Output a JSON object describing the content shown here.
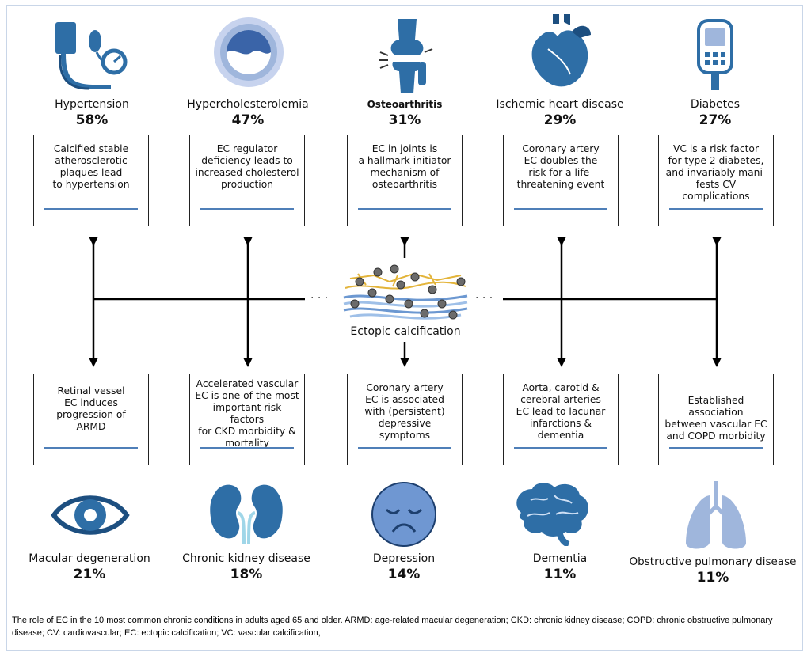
{
  "top_conditions": [
    {
      "name": "Hypertension",
      "pct": "58%",
      "box": [
        "Calcified stable",
        "atherosclerotic",
        "plaques lead",
        "to hypertension"
      ]
    },
    {
      "name": "Hypercholesterolemia",
      "pct": "47%",
      "box": [
        "EC regulator",
        "deficiency leads to",
        "increased cholesterol",
        "production"
      ]
    },
    {
      "name": "Osteoarthritis",
      "pct": "31%",
      "box": [
        "EC in joints is",
        "a hallmark initiator",
        "mechanism of",
        "osteoarthritis"
      ]
    },
    {
      "name": "Ischemic heart disease",
      "pct": "29%",
      "box": [
        "Coronary artery",
        "EC doubles the",
        "risk for a life-",
        "threatening event"
      ]
    },
    {
      "name": "Diabetes",
      "pct": "27%",
      "box": [
        "VC is a risk factor",
        "for type 2 diabetes,",
        "and invariably mani-",
        "fests CV complications"
      ]
    }
  ],
  "bottom_conditions": [
    {
      "name": "Macular degeneration",
      "pct": "21%",
      "box": [
        "Retinal vessel",
        "EC induces",
        "progression of",
        "ARMD"
      ]
    },
    {
      "name": "Chronic kidney disease",
      "pct": "18%",
      "box": [
        "Accelerated vascular",
        "EC is one of the most",
        "important risk factors",
        "for CKD morbidity &",
        "mortality"
      ]
    },
    {
      "name": "Depression",
      "pct": "14%",
      "box": [
        "Coronary artery",
        "EC is associated",
        "with (persistent)",
        "depressive symptoms"
      ]
    },
    {
      "name": "Dementia",
      "pct": "11%",
      "box": [
        "Aorta, carotid &",
        "cerebral arteries",
        "EC lead to lacunar",
        "infarctions & dementia"
      ]
    },
    {
      "name": "Obstructive pulmonary disease",
      "pct": "11%",
      "box": [
        "Established association",
        "between vascular EC",
        "and COPD morbidity"
      ]
    }
  ],
  "center": {
    "label": "Ectopic calcification",
    "ellipsis": "· · ·"
  },
  "caption": "The role of EC in the 10 most common chronic conditions in adults aged 65 and older. ARMD: age-related macular degeneration; CKD: chronic kidney disease; COPD: chronic obstructive pulmonary disease; CV: cardiovascular; EC: ectopic calcification; VC: vascular calcification,",
  "colors": {
    "icon_blue": "#2e6ea6",
    "icon_dark": "#1d4f80",
    "light_blue": "#9fb6dc",
    "underline": "#4f7fb8"
  }
}
